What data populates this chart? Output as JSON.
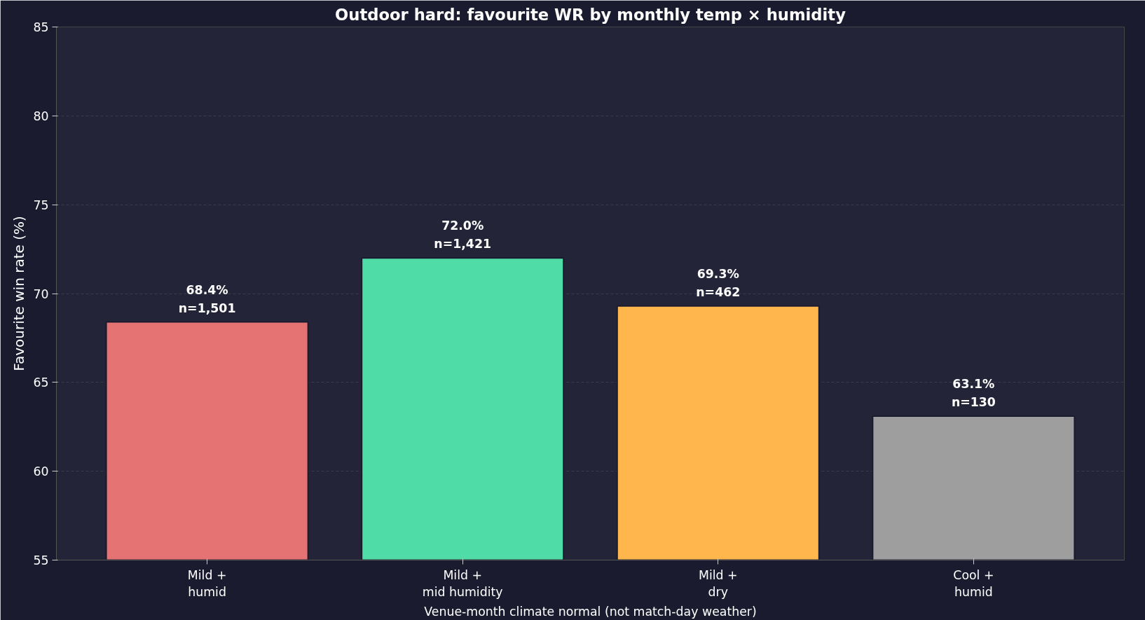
{
  "chart_data": {
    "type": "bar",
    "title": "Outdoor hard: favourite WR by monthly temp × humidity",
    "xlabel": "Venue-month climate normal (not match-day weather)",
    "ylabel": "Favourite win rate (%)",
    "categories": [
      "Mild +\nhumid",
      "Mild +\nmid humidity",
      "Mild +\ndry",
      "Cool +\nhumid"
    ],
    "values": [
      68.4,
      72.0,
      69.3,
      63.1
    ],
    "colors": [
      "#e57373",
      "#4fdca6",
      "#ffb74d",
      "#9e9e9e"
    ],
    "value_labels": [
      "68.4%\nn=1,501",
      "72.0%\nn=1,421",
      "69.3%\nn=462",
      "63.1%\nn=130"
    ],
    "ylim": [
      55,
      85
    ],
    "yticks": [
      55,
      60,
      65,
      70,
      75,
      80,
      85
    ],
    "grid": "y"
  }
}
